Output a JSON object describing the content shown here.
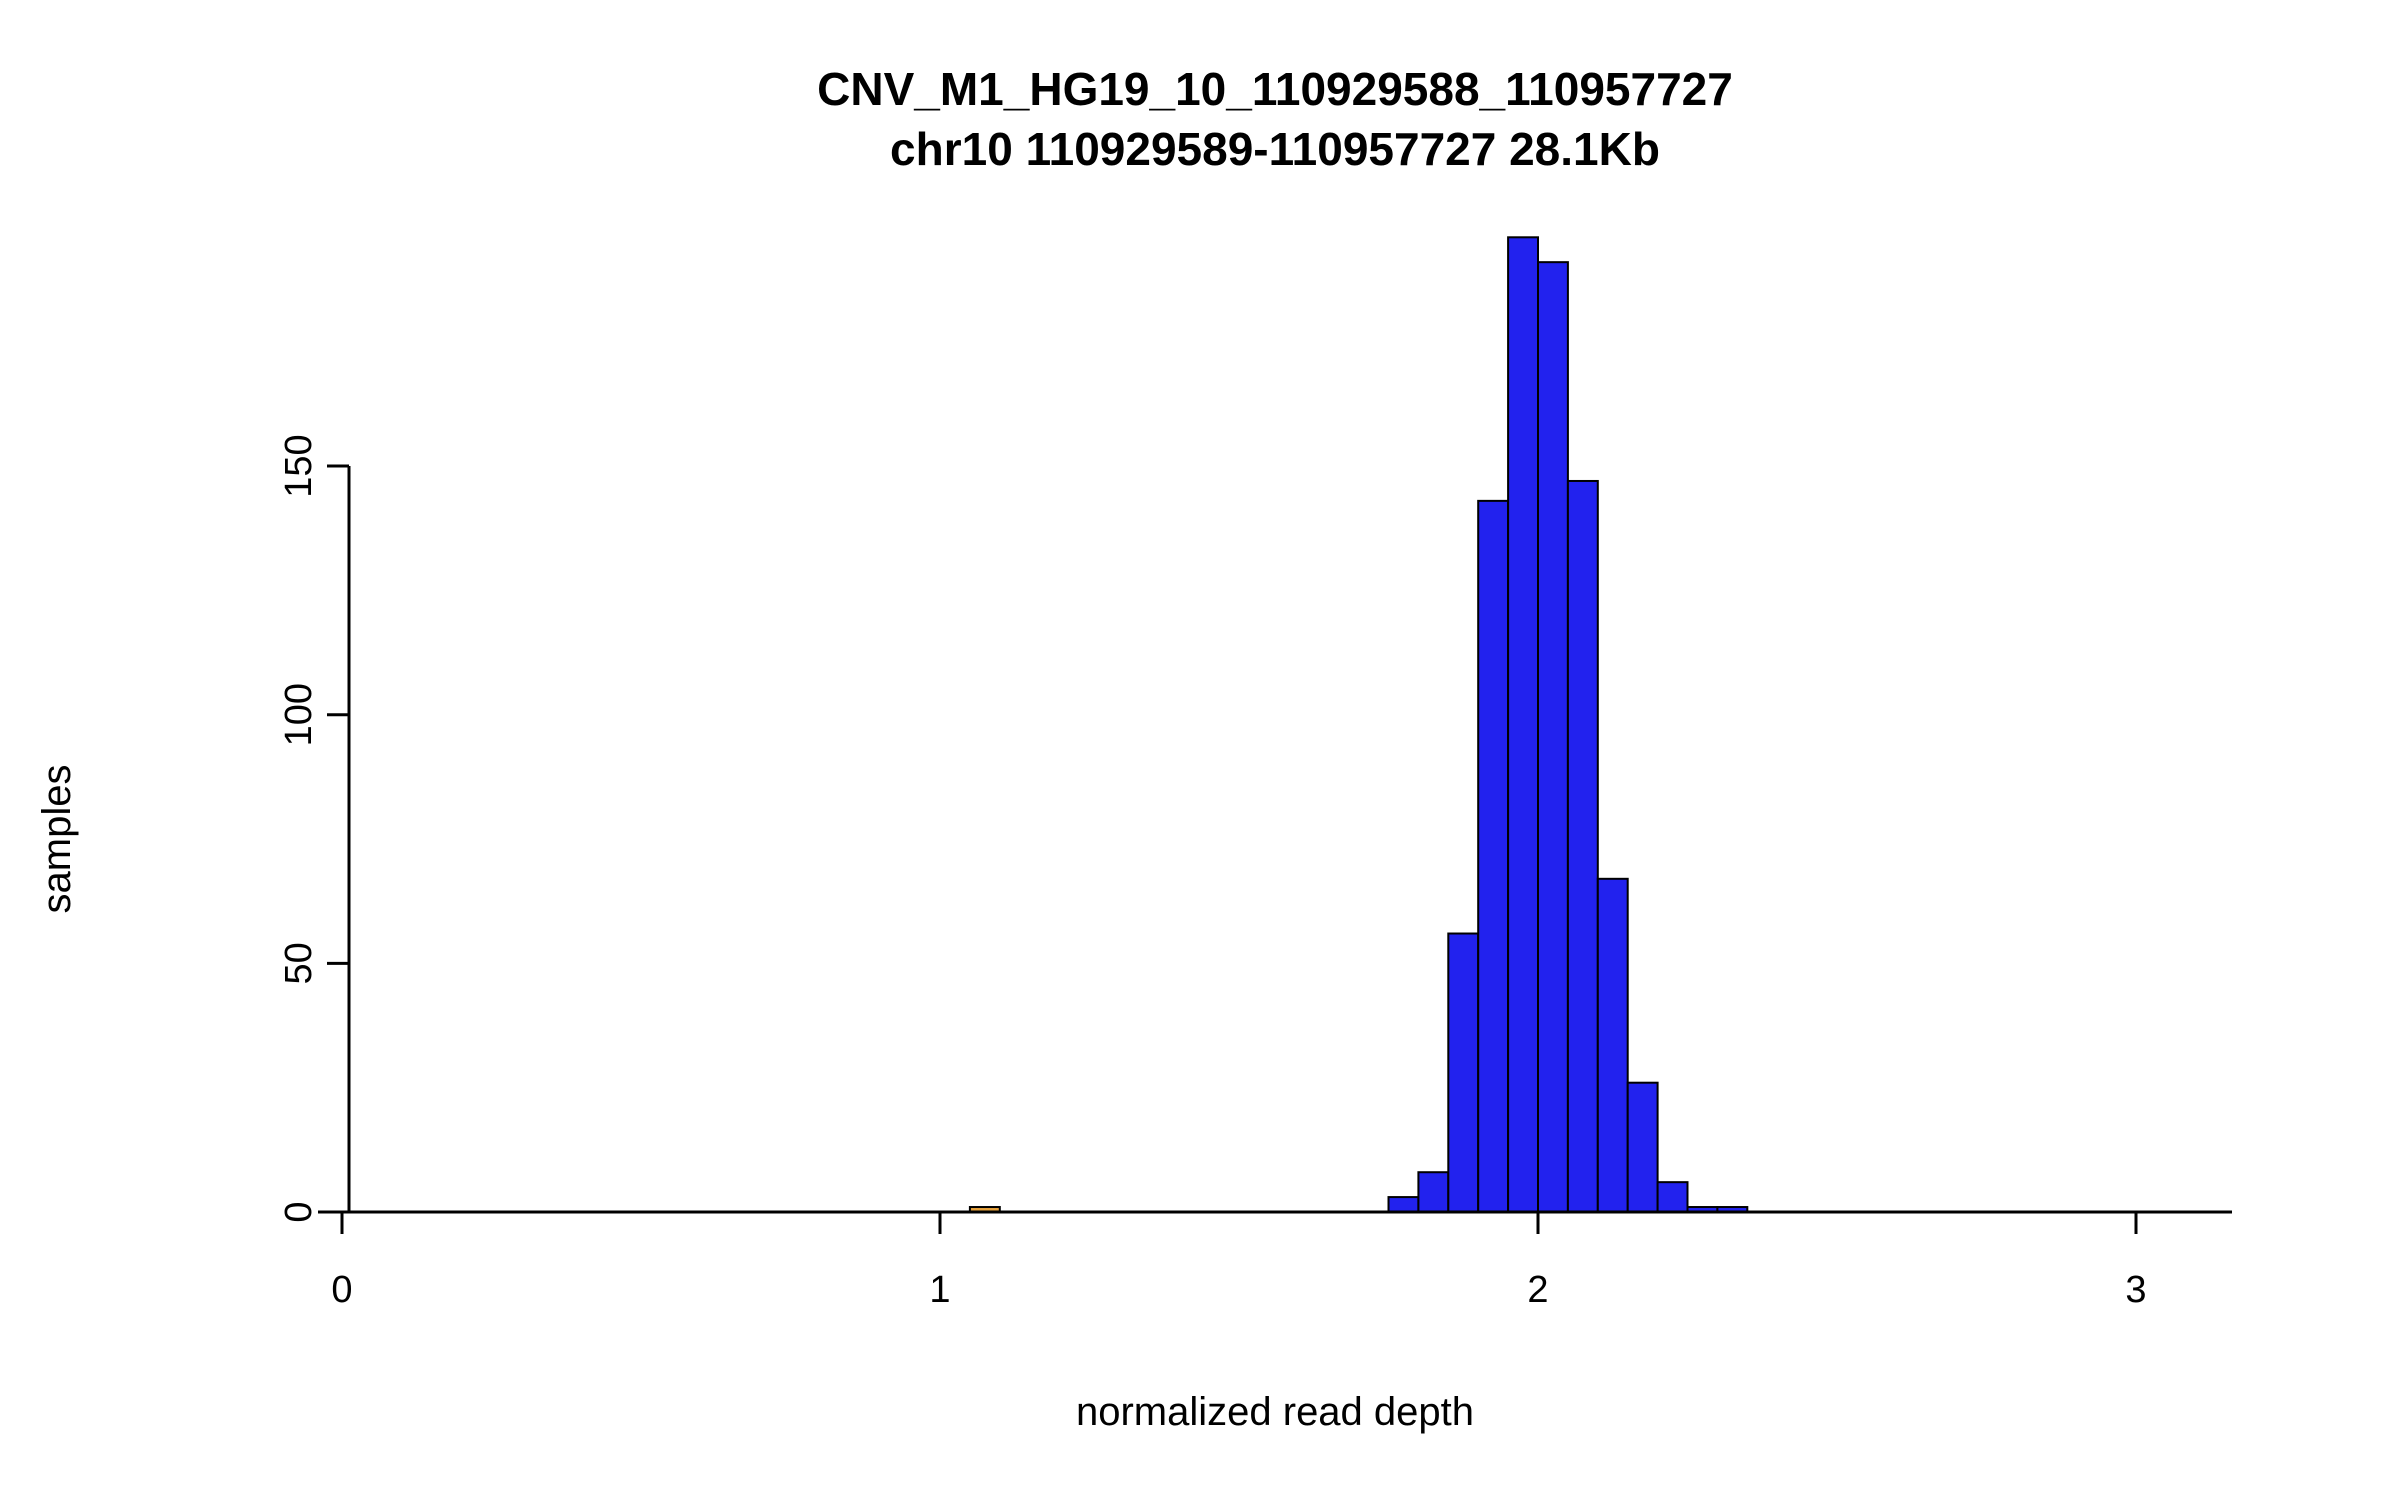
{
  "chart_data": {
    "type": "bar",
    "subtype": "histogram",
    "title": "CNV_M1_HG19_10_110929588_110957727",
    "subtitle": "chr10 110929589-110957727 28.1Kb",
    "xlabel": "normalized read depth",
    "ylabel": "samples",
    "xlim": [
      -0.05,
      3.16
    ],
    "ylim": [
      0,
      200
    ],
    "x_ticks": [
      0,
      1,
      2,
      3
    ],
    "y_ticks": [
      0,
      50,
      100,
      150
    ],
    "grid": false,
    "legend": false,
    "bin_width": 0.05,
    "bar_border_color": "#000000",
    "axis_color": "#000000",
    "bars": [
      {
        "x": 1.05,
        "height": 1,
        "color": "#E8A33D"
      },
      {
        "x": 1.75,
        "height": 3,
        "color": "#2222EE"
      },
      {
        "x": 1.8,
        "height": 8,
        "color": "#2222EE"
      },
      {
        "x": 1.85,
        "height": 56,
        "color": "#2222EE"
      },
      {
        "x": 1.9,
        "height": 143,
        "color": "#2222EE"
      },
      {
        "x": 1.95,
        "height": 196,
        "color": "#2222EE"
      },
      {
        "x": 2.0,
        "height": 191,
        "color": "#2222EE"
      },
      {
        "x": 2.05,
        "height": 147,
        "color": "#2222EE"
      },
      {
        "x": 2.1,
        "height": 67,
        "color": "#2222EE"
      },
      {
        "x": 2.15,
        "height": 26,
        "color": "#2222EE"
      },
      {
        "x": 2.2,
        "height": 6,
        "color": "#2222EE"
      },
      {
        "x": 2.25,
        "height": 1,
        "color": "#2222EE"
      },
      {
        "x": 2.3,
        "height": 1,
        "color": "#2222EE"
      }
    ]
  }
}
